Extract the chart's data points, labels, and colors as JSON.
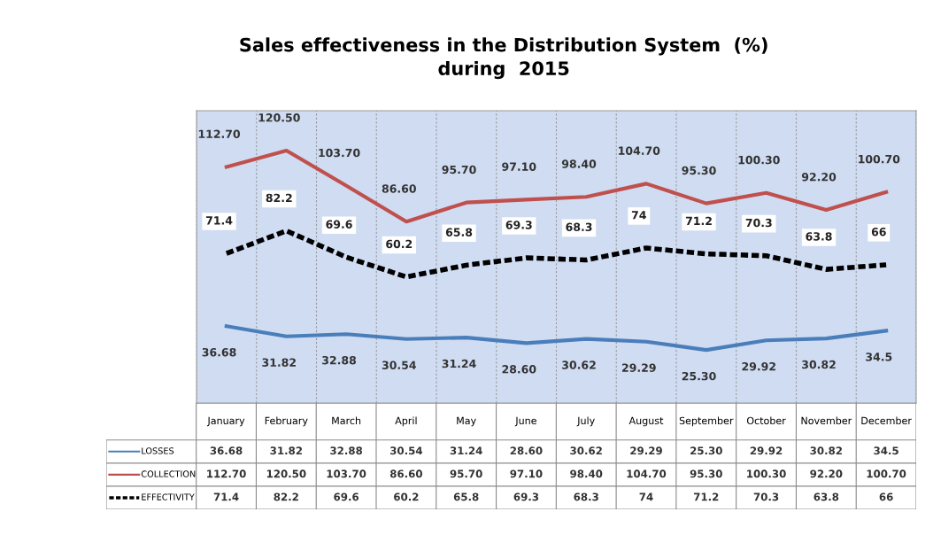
{
  "chart_data": {
    "type": "line",
    "title": "Sales effectiveness in the Distribution System  (%)\nduring  2015",
    "categories": [
      "January",
      "February",
      "March",
      "April",
      "May",
      "June",
      "July",
      "August",
      "September",
      "October",
      "November",
      "December"
    ],
    "series": [
      {
        "name": "LOSSES",
        "color": "#4a7ebb",
        "line_style": "solid",
        "values": [
          36.68,
          31.82,
          32.88,
          30.54,
          31.24,
          28.6,
          30.62,
          29.29,
          25.3,
          29.92,
          30.82,
          34.5
        ],
        "value_labels": [
          "36.68",
          "31.82",
          "32.88",
          "30.54",
          "31.24",
          "28.60",
          "30.62",
          "29.29",
          "25.30",
          "29.92",
          "30.82",
          "34.5"
        ]
      },
      {
        "name": "COLLECTION",
        "color": "#c0504d",
        "line_style": "solid",
        "values": [
          112.7,
          120.5,
          103.7,
          86.6,
          95.7,
          97.1,
          98.4,
          104.7,
          95.3,
          100.3,
          92.2,
          100.7
        ],
        "value_labels": [
          "112.70",
          "120.50",
          "103.70",
          "86.60",
          "95.70",
          "97.10",
          "98.40",
          "104.70",
          "95.30",
          "100.30",
          "92.20",
          "100.70"
        ]
      },
      {
        "name": "EFFECTIVITY",
        "color": "#000000",
        "line_style": "dashed",
        "values": [
          71.4,
          82.2,
          69.6,
          60.2,
          65.8,
          69.3,
          68.3,
          74,
          71.2,
          70.3,
          63.8,
          66
        ],
        "value_labels": [
          "71.4",
          "82.2",
          "69.6",
          "60.2",
          "65.8",
          "69.3",
          "68.3",
          "74",
          "71.2",
          "70.3",
          "63.8",
          "66"
        ]
      }
    ],
    "relative": false,
    "grid": "x",
    "legend": "bottom",
    "marker": "none",
    "tick_labels": false
  }
}
